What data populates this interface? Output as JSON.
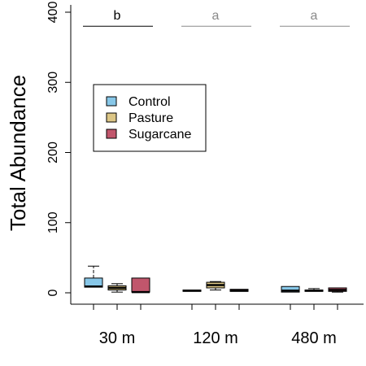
{
  "chart_data": {
    "type": "boxplot",
    "title": "",
    "xlabel": "",
    "ylabel": "Total Abundance",
    "ylim": [
      0,
      400
    ],
    "yticks": [
      0,
      100,
      200,
      300,
      400
    ],
    "grid": false,
    "legend_position": "upper-left, inside plot",
    "categories": [
      "30 m",
      "120 m",
      "480 m"
    ],
    "series": [
      {
        "name": "Control",
        "color": "#87c7e8",
        "boxes": [
          {
            "min": 8,
            "q1": 8,
            "median": 9,
            "q3": 21,
            "max": 38
          },
          {
            "min": 2,
            "q1": 2,
            "median": 3,
            "q3": 4,
            "max": 4
          },
          {
            "min": 1,
            "q1": 1,
            "median": 3,
            "q3": 9,
            "max": 9
          }
        ]
      },
      {
        "name": "Pasture",
        "color": "#dcc686",
        "boxes": [
          {
            "min": 1,
            "q1": 4,
            "median": 7,
            "q3": 10,
            "max": 13
          },
          {
            "min": 4,
            "q1": 7,
            "median": 11,
            "q3": 15,
            "max": 16
          },
          {
            "min": 2,
            "q1": 2,
            "median": 3,
            "q3": 4,
            "max": 6
          }
        ]
      },
      {
        "name": "Sugarcane",
        "color": "#c1566c",
        "boxes": [
          {
            "min": 1,
            "q1": 1,
            "median": 1,
            "q3": 21,
            "max": 21
          },
          {
            "min": 2,
            "q1": 2,
            "median": 3,
            "q3": 5,
            "max": 5
          },
          {
            "min": 1,
            "q1": 2,
            "median": 4,
            "q3": 7,
            "max": 7
          }
        ]
      }
    ],
    "annotations": [
      {
        "group": "30 m",
        "label": "b",
        "color": "#000000",
        "line_value": 380
      },
      {
        "group": "120 m",
        "label": "a",
        "color": "#8a8a8a",
        "line_value": 380
      },
      {
        "group": "480 m",
        "label": "a",
        "color": "#8a8a8a",
        "line_value": 380
      }
    ]
  }
}
